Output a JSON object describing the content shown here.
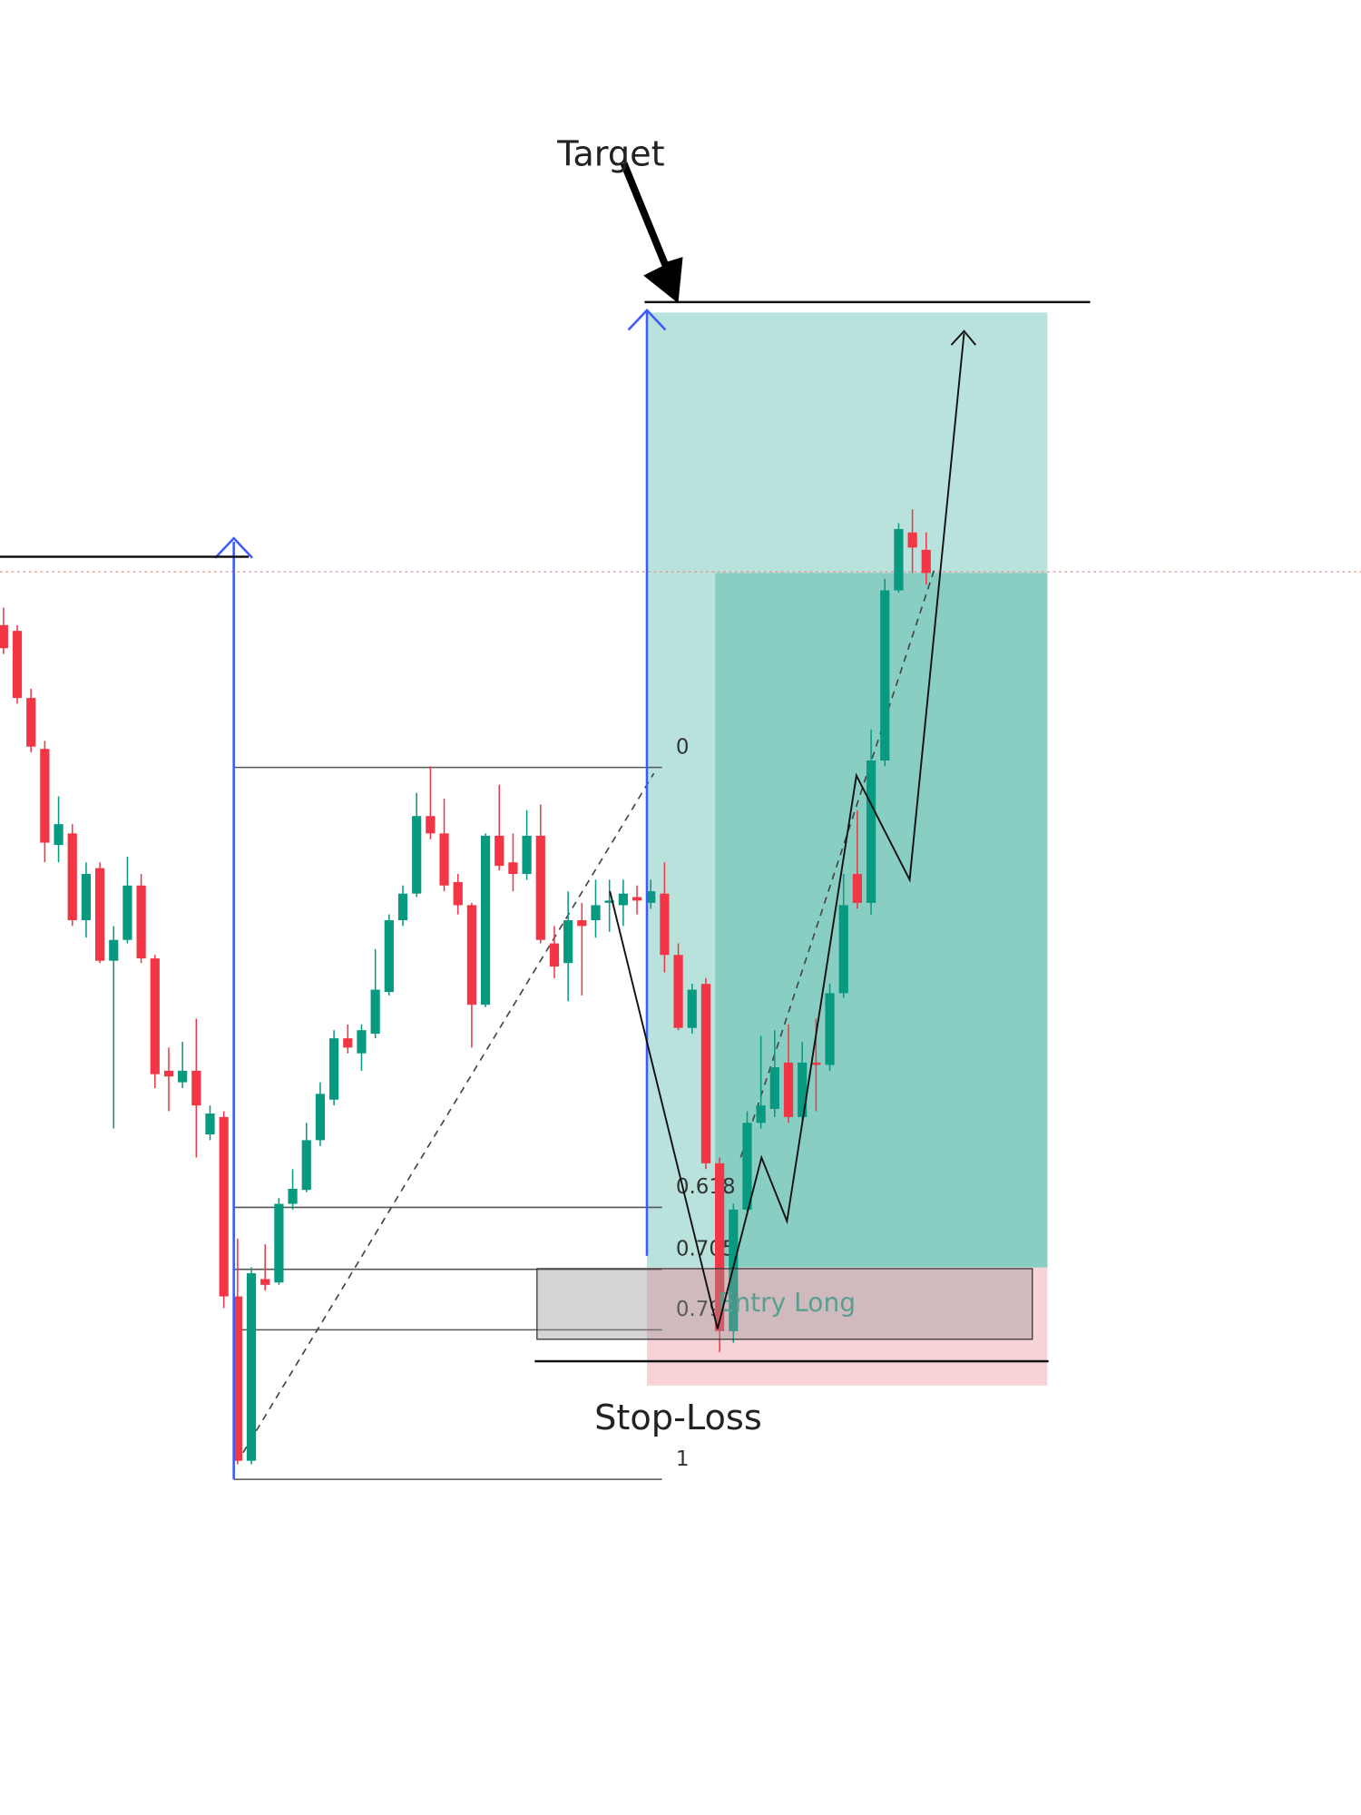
{
  "chart_data": {
    "type": "candlestick",
    "ylim": [
      -26.8,
      130
    ],
    "open": [
      76,
      75.5,
      69.7,
      65.3,
      57,
      58,
      50.5,
      55,
      47,
      48.8,
      53.5,
      47.2,
      37.5,
      36.5,
      37.5,
      32,
      33.5,
      18,
      3.8,
      19.5,
      19.2,
      26,
      27.2,
      31.5,
      35,
      40.3,
      39,
      40.7,
      44.3,
      50.5,
      52.8,
      59.5,
      58,
      53.8,
      51.8,
      43.2,
      57.8,
      55.5,
      54.5,
      57.8,
      48.5,
      46.8,
      50.5,
      50.5,
      52,
      51.8,
      52.5,
      52,
      52.8,
      47.5,
      41.2,
      45,
      29.5,
      15,
      25.5,
      33,
      34.2,
      38.2,
      33.5,
      38.2,
      38,
      44.2,
      54.5,
      52,
      64.3,
      79,
      84,
      82.5
    ],
    "high": [
      77.5,
      76,
      70.5,
      66,
      61.2,
      58.8,
      55.5,
      55.5,
      50,
      56,
      54.5,
      47.5,
      39.5,
      40,
      42,
      34.5,
      34,
      23,
      20.5,
      22.5,
      26.5,
      29,
      33,
      36.5,
      41,
      41.5,
      41.5,
      48,
      51,
      53.5,
      61.5,
      63.8,
      61,
      54.5,
      52,
      58,
      62.2,
      58,
      60,
      60.5,
      50,
      53,
      52,
      54,
      54,
      54,
      53.5,
      54,
      55.5,
      48.5,
      45,
      45.5,
      30,
      26,
      34,
      40.5,
      41,
      41.5,
      40,
      42,
      45,
      54.5,
      60,
      67,
      80,
      84.8,
      86,
      84
    ],
    "low": [
      73.5,
      69.2,
      65,
      55.5,
      55.5,
      50,
      49,
      46.8,
      32.5,
      48.5,
      46.8,
      36,
      34,
      36,
      30,
      31.5,
      17,
      3.5,
      3.5,
      18.5,
      19,
      25.5,
      27,
      31,
      34.5,
      39,
      37.5,
      40.3,
      44,
      50,
      52.5,
      57.5,
      53,
      51,
      39.5,
      43,
      54.8,
      53,
      54,
      48.5,
      45.5,
      43.5,
      44,
      49,
      49.5,
      50,
      51,
      51.5,
      46,
      41,
      40.7,
      29,
      13.2,
      14,
      25,
      32.5,
      33.5,
      33,
      33.2,
      34,
      37.5,
      43.8,
      51.5,
      51,
      63.8,
      78.8,
      80.5,
      79.5
    ],
    "close": [
      74,
      69.7,
      65.5,
      57.2,
      58.8,
      50.5,
      54.5,
      47,
      48.8,
      53.5,
      47.2,
      37.2,
      37,
      37.5,
      34.5,
      33.8,
      18,
      3.8,
      20,
      19,
      26,
      27.3,
      31.5,
      35.5,
      40.3,
      39.5,
      41,
      44.5,
      50.5,
      52.8,
      59.5,
      58,
      53.5,
      51.8,
      43.2,
      57.8,
      55.2,
      54.5,
      57.8,
      48.8,
      46.5,
      50.5,
      50,
      51.8,
      52.2,
      52.8,
      52.2,
      53,
      47.5,
      41.2,
      44.5,
      29.5,
      15,
      25.5,
      33,
      34.5,
      37.8,
      33.5,
      38.2,
      38,
      44.2,
      51.8,
      52,
      64.3,
      79,
      84.3,
      82.7,
      80.5
    ],
    "fib_levels": [
      0,
      0.618,
      0.705,
      0.79,
      1
    ],
    "annotations": {
      "target": "Target",
      "stop_loss": "Stop-Loss",
      "entry": "Entry Long"
    }
  }
}
